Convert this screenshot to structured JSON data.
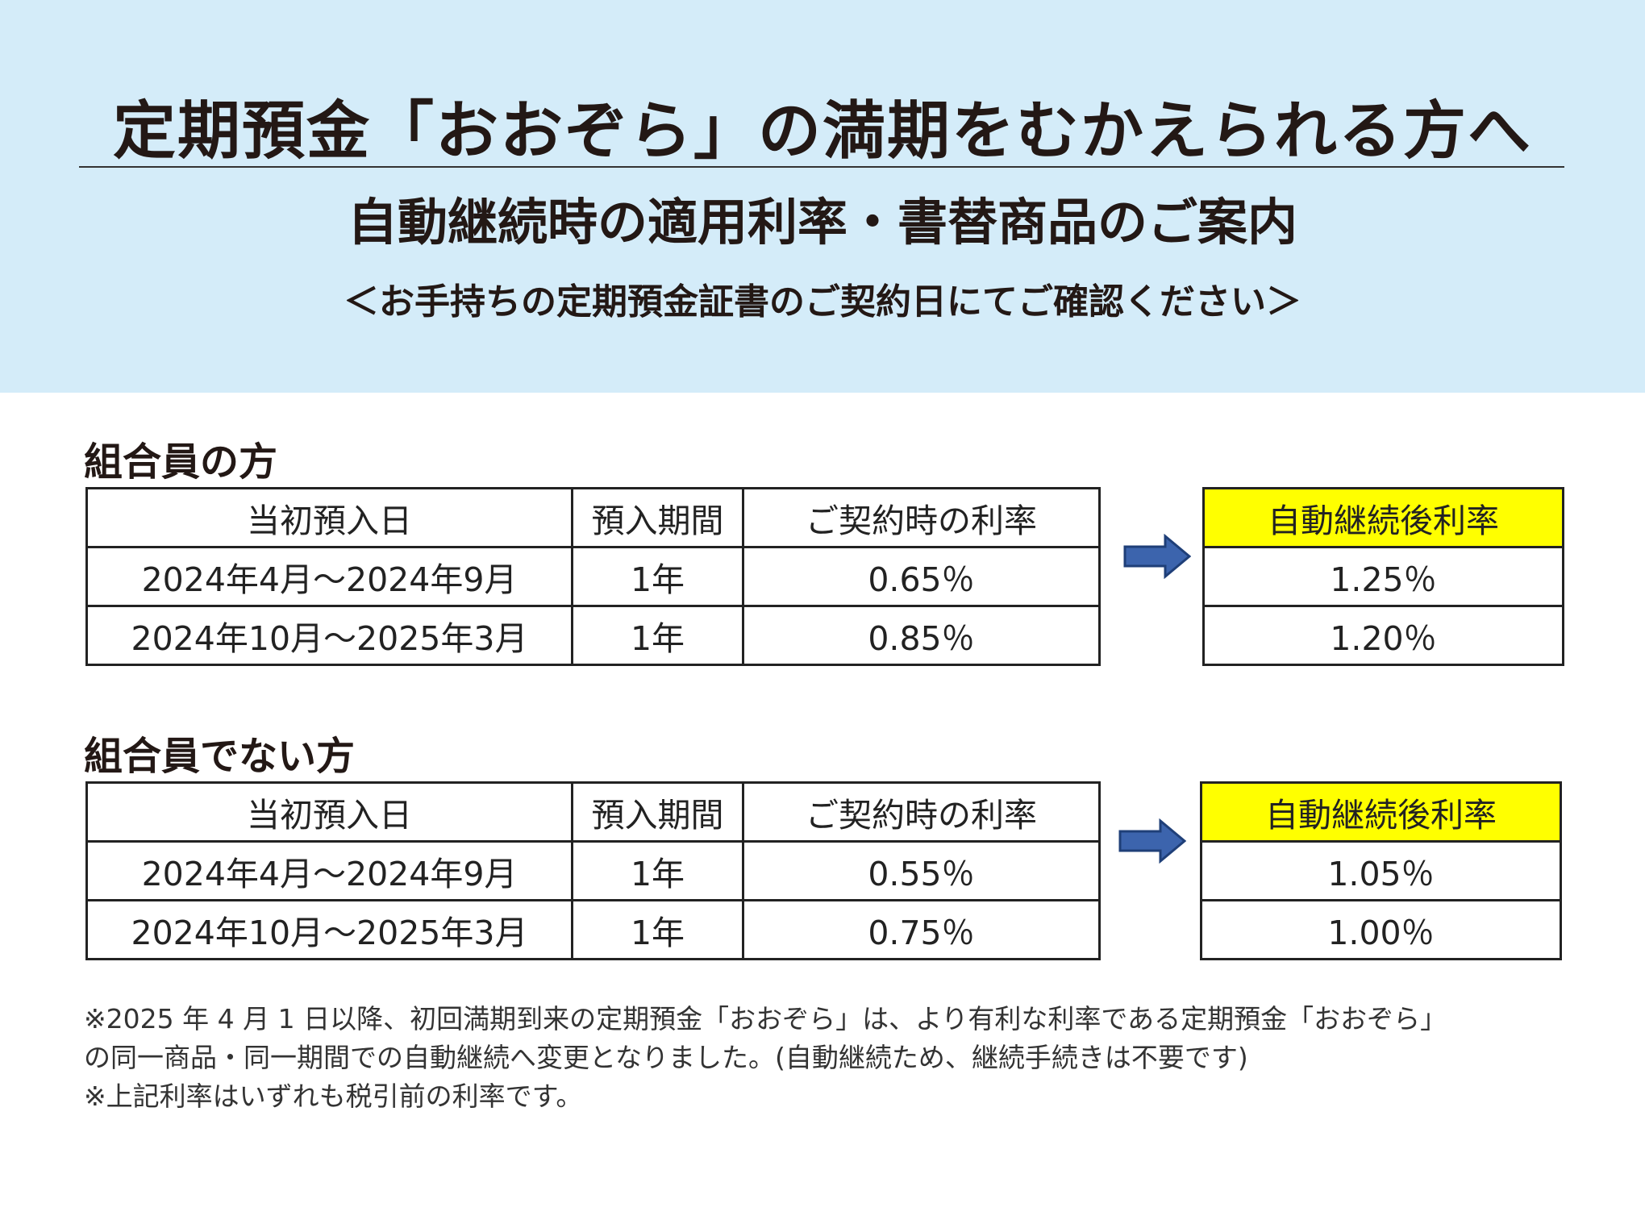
{
  "header": {
    "title": "定期預金「おおぞら」の満期をむかえられる方へ",
    "subtitle": "自動継続時の適用利率・書替商品のご案内",
    "note": "＜お手持ちの定期預金証書のご契約日にてご確認ください＞",
    "background_color": "#d4ecf9"
  },
  "sections": [
    {
      "heading": "組合員の方",
      "columns": [
        "当初預入日",
        "預入期間",
        "ご契約時の利率"
      ],
      "rows": [
        [
          "2024年4月～2024年9月",
          "1年",
          "0.65％"
        ],
        [
          "2024年10月～2025年3月",
          "1年",
          "0.85％"
        ]
      ],
      "result_header": "自動継続後利率",
      "results": [
        "1.25％",
        "1.20％"
      ]
    },
    {
      "heading": "組合員でない方",
      "columns": [
        "当初預入日",
        "預入期間",
        "ご契約時の利率"
      ],
      "rows": [
        [
          "2024年4月～2024年9月",
          "1年",
          "0.55％"
        ],
        [
          "2024年10月～2025年3月",
          "1年",
          "0.75％"
        ]
      ],
      "result_header": "自動継続後利率",
      "results": [
        "1.05％",
        "1.00％"
      ]
    }
  ],
  "arrow_icon": "right-arrow-icon",
  "highlight_color": "#ffff00",
  "arrow_color": "#3c64ad",
  "footnotes": [
    "※2025 年 4 月 1 日以降、初回満期到来の定期預金「おおぞら」は、より有利な利率である定期預金「おおぞら」",
    "の同一商品・同一期間での自動継続へ変更となりました。(自動継続ため、継続手続きは不要です)",
    "※上記利率はいずれも税引前の利率です。"
  ]
}
